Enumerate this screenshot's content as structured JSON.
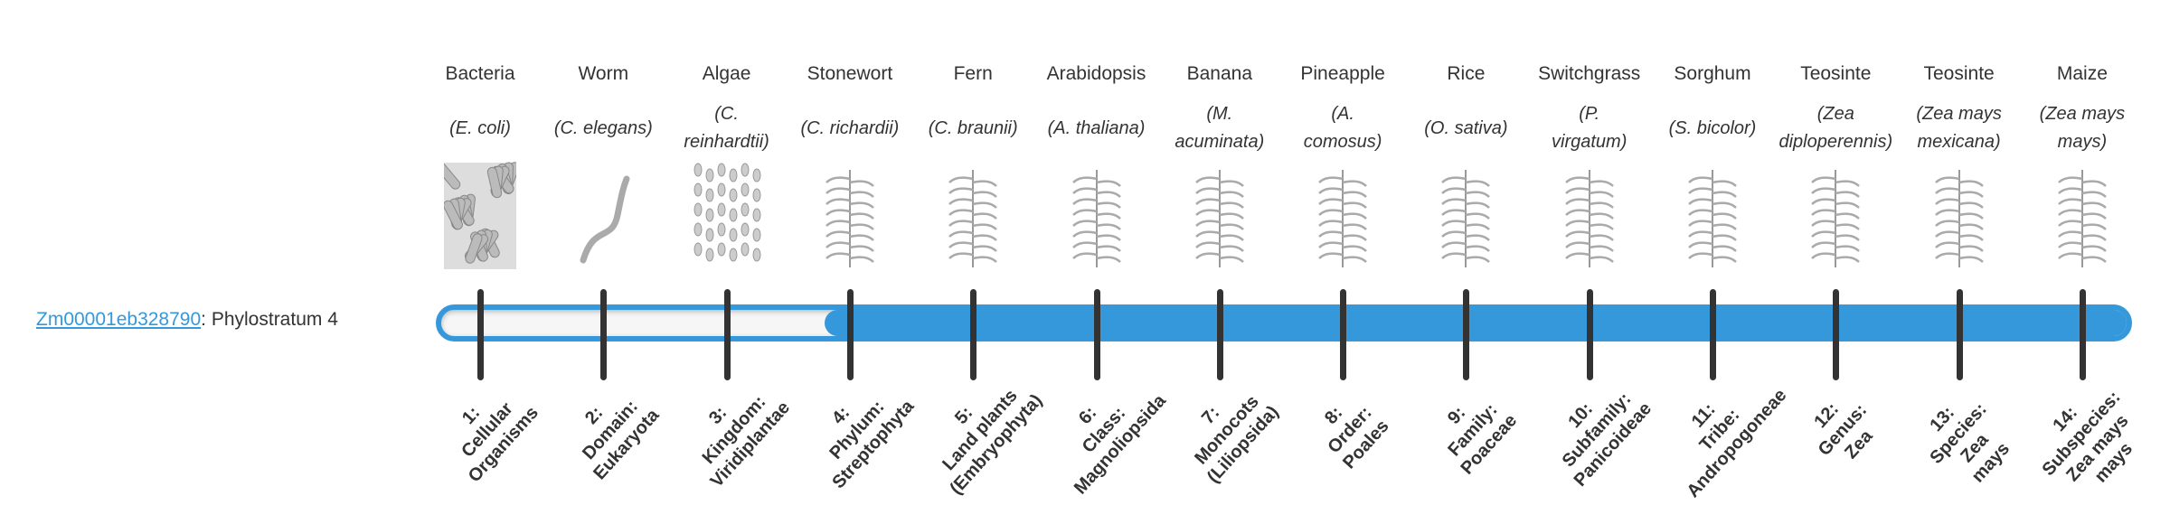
{
  "gene": {
    "id": "Zm00001eb328790",
    "suffix": ": Phylostratum 4",
    "phylostratum": 4
  },
  "colors": {
    "accent": "#3498db",
    "tick": "#333333",
    "text": "#333333"
  },
  "organisms": [
    {
      "common": "Bacteria",
      "sci": [
        "(E. coli)"
      ],
      "icon": "bacteria-icon"
    },
    {
      "common": "Worm",
      "sci": [
        "(C. elegans)"
      ],
      "icon": "worm-icon"
    },
    {
      "common": "Algae",
      "sci": [
        "(C.",
        "reinhardtii)"
      ],
      "icon": "algae-icon"
    },
    {
      "common": "Stonewort",
      "sci": [
        "(C. richardii)"
      ],
      "icon": "stonewort-icon"
    },
    {
      "common": "Fern",
      "sci": [
        "(C. braunii)"
      ],
      "icon": "fern-icon"
    },
    {
      "common": "Arabidopsis",
      "sci": [
        "(A. thaliana)"
      ],
      "icon": "arabidopsis-icon"
    },
    {
      "common": "Banana",
      "sci": [
        "(M.",
        "acuminata)"
      ],
      "icon": "banana-icon"
    },
    {
      "common": "Pineapple",
      "sci": [
        "(A.",
        "comosus)"
      ],
      "icon": "pineapple-icon"
    },
    {
      "common": "Rice",
      "sci": [
        "(O. sativa)"
      ],
      "icon": "rice-icon"
    },
    {
      "common": "Switchgrass",
      "sci": [
        "(P.",
        "virgatum)"
      ],
      "icon": "switchgrass-icon"
    },
    {
      "common": "Sorghum",
      "sci": [
        "(S. bicolor)"
      ],
      "icon": "sorghum-icon"
    },
    {
      "common": "Teosinte",
      "sci": [
        "(Zea",
        "diploperennis)"
      ],
      "icon": "teosinte-icon"
    },
    {
      "common": "Teosinte",
      "sci": [
        "(Zea mays",
        "mexicana)"
      ],
      "icon": "teosinte-icon"
    },
    {
      "common": "Maize",
      "sci": [
        "(Zea mays",
        "mays)"
      ],
      "icon": "maize-icon"
    }
  ],
  "strata": [
    [
      "1:",
      "Cellular",
      "Organisms"
    ],
    [
      "2:",
      "Domain:",
      "Eukaryota"
    ],
    [
      "3:",
      "Kingdom:",
      "Viridiplantae"
    ],
    [
      "4:",
      "Phylum:",
      "Streptophyta"
    ],
    [
      "5:",
      "Land plants",
      "(Embryophyta)"
    ],
    [
      "6:",
      "Class:",
      "Magnoliopsida"
    ],
    [
      "7:",
      "Monocots",
      "(Liliopsida)"
    ],
    [
      "8:",
      "Order:",
      "Poales"
    ],
    [
      "9:",
      "Family:",
      "Poaceae"
    ],
    [
      "10:",
      "Subfamily:",
      "Panicoideae"
    ],
    [
      "11:",
      "Tribe:",
      "Andropogoneae"
    ],
    [
      "12:",
      "Genus:",
      "Zea"
    ],
    [
      "13:",
      "Species:",
      "Zea",
      "mays"
    ],
    [
      "14:",
      "Subspecies:",
      "Zea mays",
      "mays"
    ]
  ]
}
